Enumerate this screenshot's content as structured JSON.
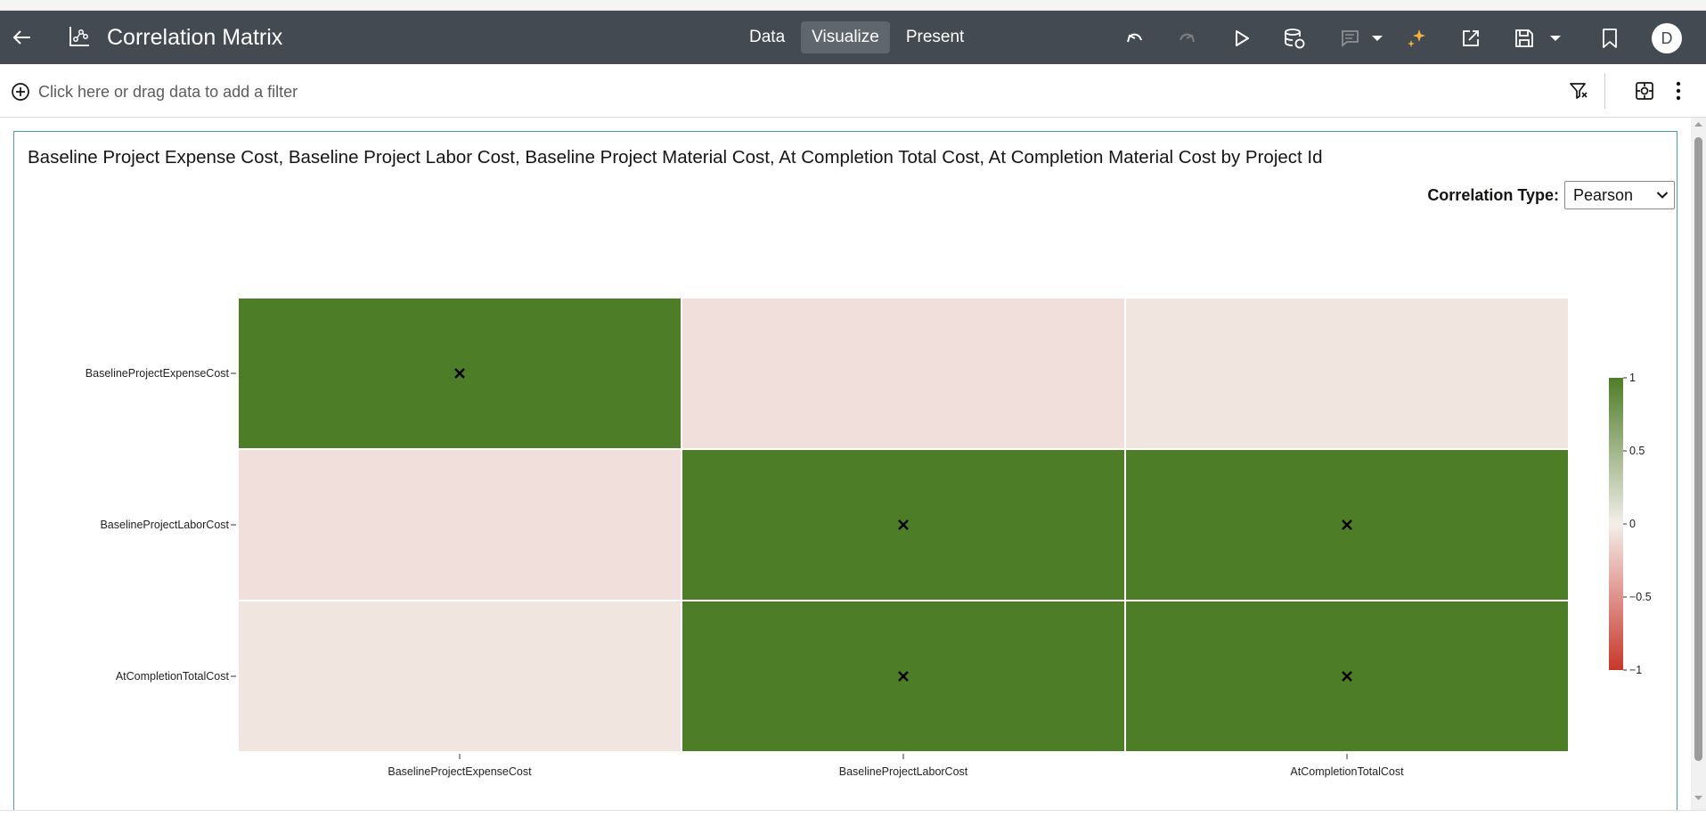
{
  "header": {
    "title": "Correlation Matrix",
    "modes": [
      {
        "label": "Data",
        "active": false
      },
      {
        "label": "Visualize",
        "active": true
      },
      {
        "label": "Present",
        "active": false
      }
    ],
    "user_initial": "D",
    "colors": {
      "bar": "#434a51",
      "active_tab": "#5f666d",
      "accent": "#f0b03c"
    }
  },
  "filter_bar": {
    "placeholder": "Click here or drag data to add a filter"
  },
  "visualization": {
    "title": "Baseline Project Expense Cost, Baseline Project Labor Cost, Baseline Project Material Cost, At Completion Total Cost, At Completion Material Cost by Project Id",
    "correlation_label": "Correlation Type:",
    "correlation_type": "Pearson"
  },
  "chart_data": {
    "type": "heatmap",
    "x_categories": [
      "BaselineProjectExpenseCost",
      "BaselineProjectLaborCost",
      "AtCompletionTotalCost"
    ],
    "y_categories": [
      "BaselineProjectExpenseCost",
      "BaselineProjectLaborCost",
      "AtCompletionTotalCost"
    ],
    "values": [
      [
        1,
        -0.08,
        -0.05
      ],
      [
        -0.08,
        1,
        1
      ],
      [
        -0.05,
        1,
        1
      ]
    ],
    "marked": [
      [
        true,
        false,
        false
      ],
      [
        false,
        true,
        true
      ],
      [
        false,
        true,
        true
      ]
    ],
    "colorbar": {
      "ticks": [
        "1",
        "0.5",
        "0",
        "−0.5",
        "−1"
      ],
      "range": [
        -1,
        1
      ],
      "colors": {
        "positive": "#4e7d27",
        "neutral": "#f3eeea",
        "negative": "#c8372a"
      }
    }
  }
}
